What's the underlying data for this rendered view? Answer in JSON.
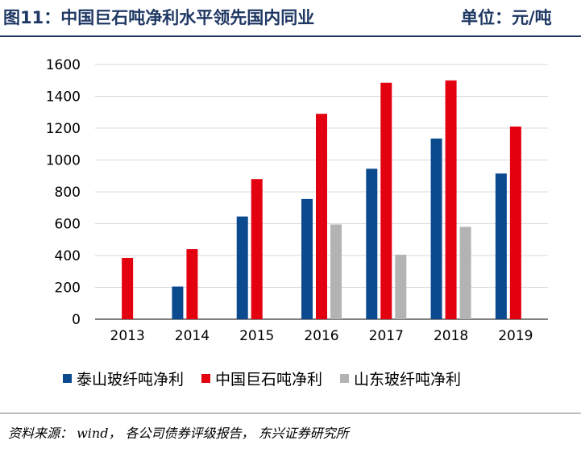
{
  "header": {
    "title": "图11：中国巨石吨净利水平领先国内同业",
    "unit": "单位：元/吨"
  },
  "chart_data": {
    "type": "bar",
    "categories": [
      "2013",
      "2014",
      "2015",
      "2016",
      "2017",
      "2018",
      "2019"
    ],
    "series": [
      {
        "name": "泰山玻纤吨净利",
        "color": "#0b4a8f",
        "values": [
          null,
          205,
          645,
          755,
          945,
          1135,
          915
        ]
      },
      {
        "name": "中国巨石吨净利",
        "color": "#e3000f",
        "values": [
          385,
          440,
          880,
          1290,
          1485,
          1500,
          1210
        ]
      },
      {
        "name": "山东玻纤吨净利",
        "color": "#b3b3b3",
        "values": [
          null,
          null,
          null,
          595,
          405,
          580,
          null
        ]
      }
    ],
    "y_ticks": [
      "0",
      "200",
      "400",
      "600",
      "800",
      "1000",
      "1200",
      "1400",
      "1600"
    ],
    "ylim": [
      0,
      1600
    ],
    "grid": true,
    "legend_position": "bottom"
  },
  "footer": {
    "source": "资料来源： wind， 各公司债券评级报告， 东兴证券研究所"
  }
}
